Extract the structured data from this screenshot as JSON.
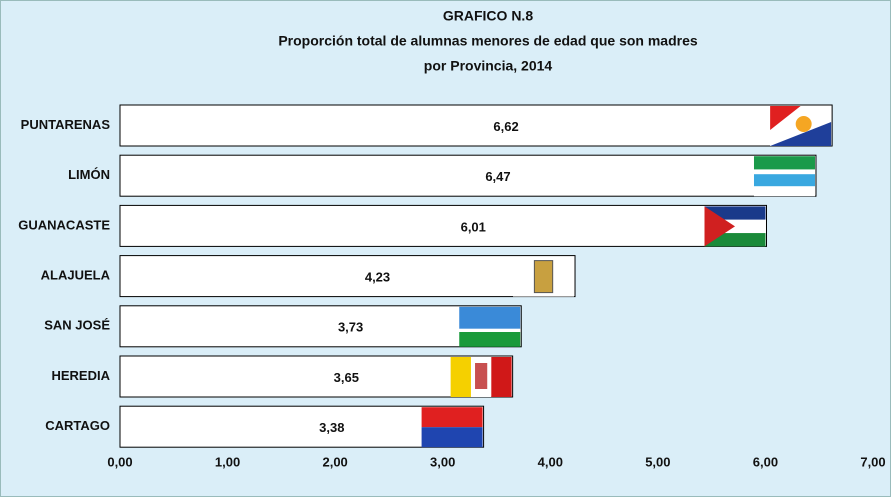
{
  "chart_data": {
    "type": "bar",
    "orientation": "horizontal",
    "title": "GRAFICO N.8",
    "subtitle": [
      "Proporción total de alumnas menores de edad que son madres",
      "por Provincia, 2014"
    ],
    "categories": [
      "PUNTARENAS",
      "LIMÓN",
      "GUANACASTE",
      "ALAJUELA",
      "SAN JOSÉ",
      "HEREDIA",
      "CARTAGO"
    ],
    "values": [
      6.62,
      6.47,
      6.01,
      4.23,
      3.73,
      3.65,
      3.38
    ],
    "value_labels": [
      "6,62",
      "6,47",
      "6,01",
      "4,23",
      "3,73",
      "3,65",
      "3,38"
    ],
    "color": "#ffffff",
    "xlim": [
      0,
      7
    ],
    "xticks": [
      {
        "value": 0,
        "label": "0,00"
      },
      {
        "value": 1,
        "label": "1,00"
      },
      {
        "value": 2,
        "label": "2,00"
      },
      {
        "value": 3,
        "label": "3,00"
      },
      {
        "value": 4,
        "label": "4,00"
      },
      {
        "value": 5,
        "label": "5,00"
      },
      {
        "value": 6,
        "label": "6,00"
      },
      {
        "value": 7,
        "label": "7,00"
      }
    ],
    "grid": false
  }
}
